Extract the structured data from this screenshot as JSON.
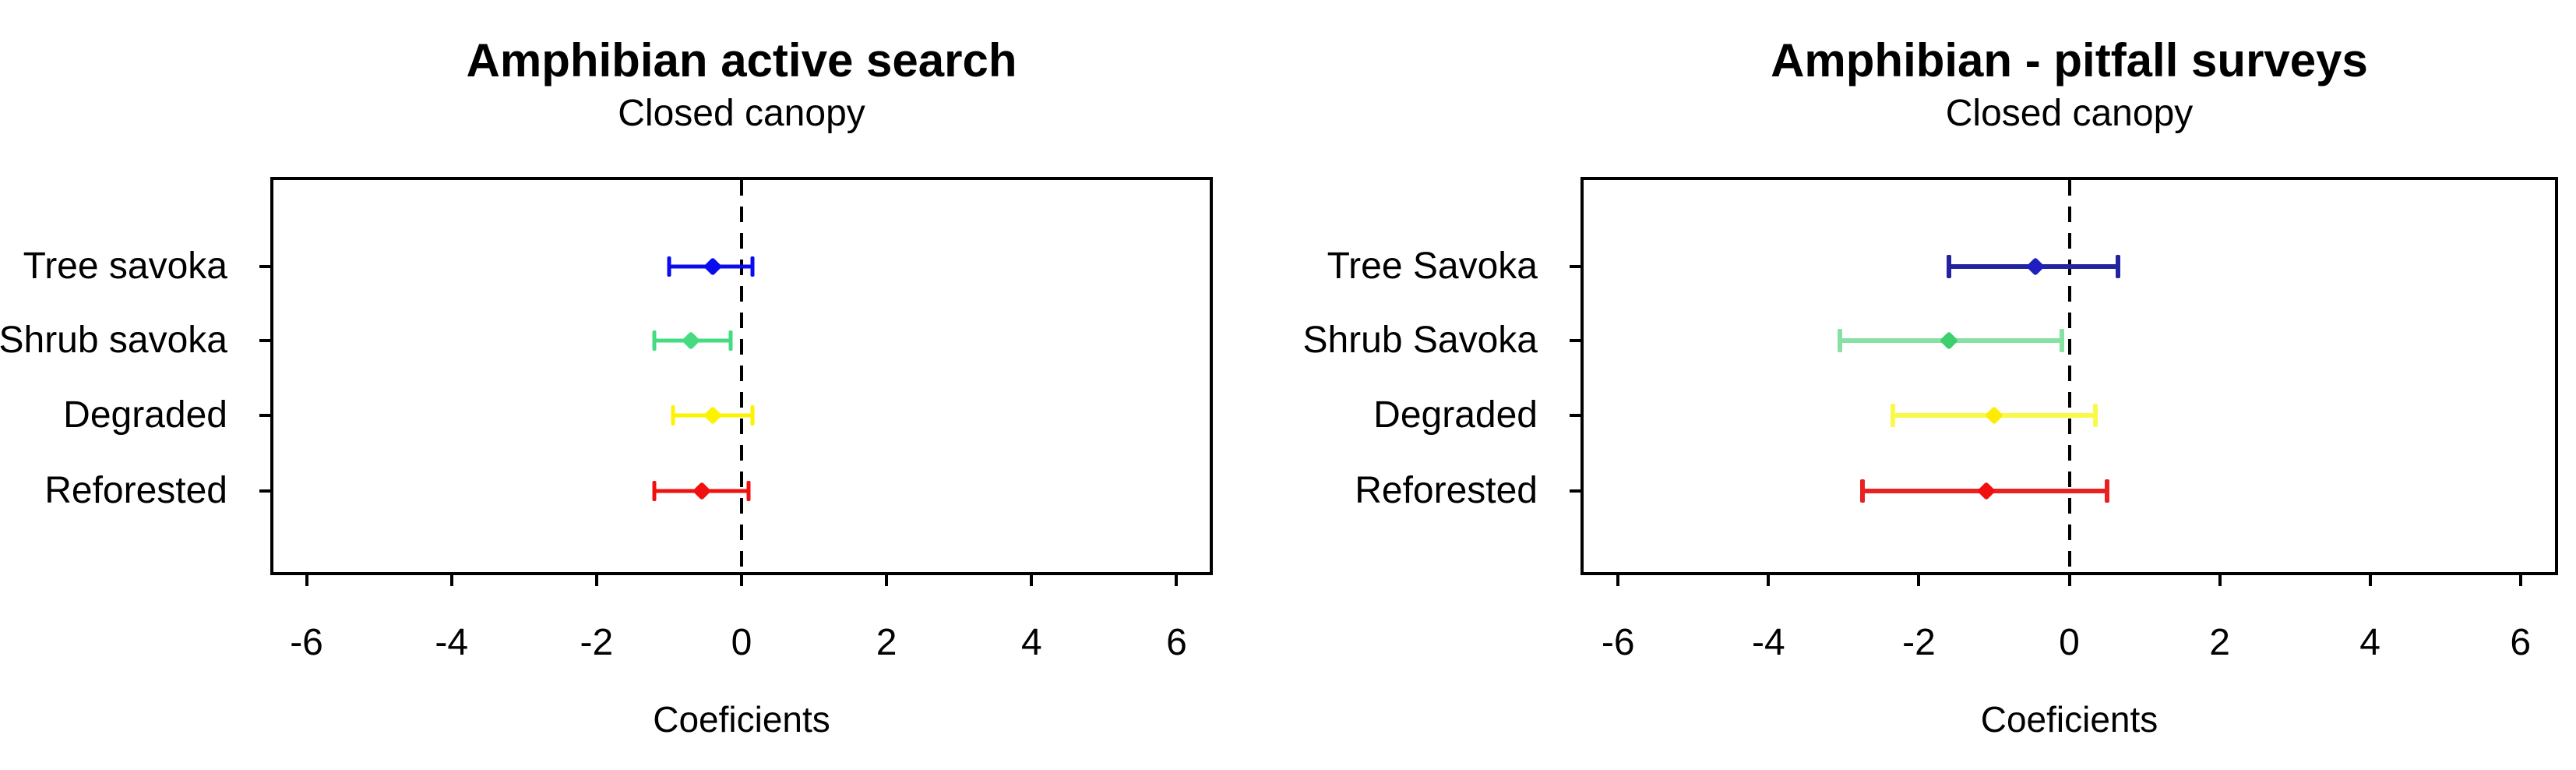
{
  "figure": {
    "background": "#ffffff",
    "axis_color": "#000000",
    "text_color": "#000000"
  },
  "chart_data": [
    {
      "type": "scatter",
      "title": "Amphibian active search",
      "subtitle": "Closed canopy",
      "xlabel": "Coeficients",
      "xlim": [
        -6.5,
        6.5
      ],
      "x_ticks": [
        -6,
        -4,
        -2,
        0,
        2,
        4,
        6
      ],
      "zero_line": {
        "x": 0,
        "style": "dashed",
        "color": "#000000"
      },
      "grid": false,
      "legend": "none",
      "categories": [
        "Tree savoka",
        "Shrub savoka",
        "Degraded",
        "Reforested"
      ],
      "series": [
        {
          "category": "Tree savoka",
          "estimate": -0.4,
          "ci_low": -1.0,
          "ci_high": 0.15,
          "line_color": "#0b0bf0",
          "point_color": "#0b0bf0"
        },
        {
          "category": "Shrub savoka",
          "estimate": -0.7,
          "ci_low": -1.2,
          "ci_high": -0.15,
          "line_color": "#45db80",
          "point_color": "#45db80"
        },
        {
          "category": "Degraded",
          "estimate": -0.4,
          "ci_low": -0.95,
          "ci_high": 0.15,
          "line_color": "#fdf200",
          "point_color": "#fdf200"
        },
        {
          "category": "Reforested",
          "estimate": -0.55,
          "ci_low": -1.2,
          "ci_high": 0.1,
          "line_color": "#f01010",
          "point_color": "#f01010"
        }
      ]
    },
    {
      "type": "scatter",
      "title": "Amphibian - pitfall surveys",
      "subtitle": "Closed canopy",
      "xlabel": "Coeficients",
      "xlim": [
        -6.5,
        6.5
      ],
      "x_ticks": [
        -6,
        -4,
        -2,
        0,
        2,
        4,
        6
      ],
      "zero_line": {
        "x": 0,
        "style": "dashed",
        "color": "#000000"
      },
      "grid": false,
      "legend": "none",
      "categories": [
        "Tree Savoka",
        "Shrub Savoka",
        "Degraded",
        "Reforested"
      ],
      "series": [
        {
          "category": "Tree Savoka",
          "estimate": -0.45,
          "ci_low": -1.6,
          "ci_high": 0.65,
          "line_color": "#23239f",
          "point_color": "#1f1fc0"
        },
        {
          "category": "Shrub Savoka",
          "estimate": -1.6,
          "ci_low": -3.05,
          "ci_high": -0.1,
          "line_color": "#85e2a3",
          "point_color": "#3dcf6c"
        },
        {
          "category": "Degraded",
          "estimate": -1.0,
          "ci_low": -2.35,
          "ci_high": 0.35,
          "line_color": "#f9f948",
          "point_color": "#fdec08"
        },
        {
          "category": "Reforested",
          "estimate": -1.1,
          "ci_low": -2.75,
          "ci_high": 0.5,
          "line_color": "#ea2121",
          "point_color": "#f01010"
        }
      ]
    }
  ]
}
